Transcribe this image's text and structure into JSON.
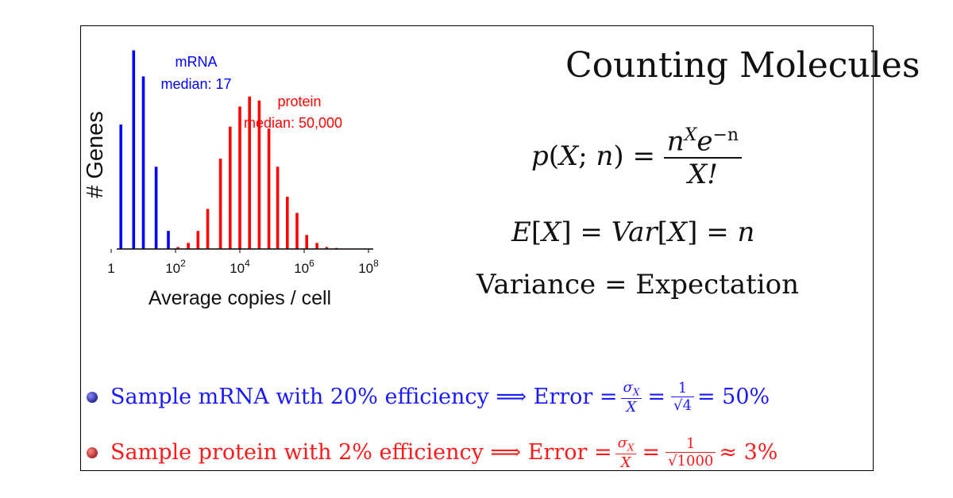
{
  "chart_data": {
    "type": "bar",
    "xlabel": "Average copies / cell",
    "ylabel": "# Genes",
    "x_scale": "log10",
    "xlim": [
      1,
      100000000
    ],
    "x_ticks": [
      {
        "value": 1,
        "base": "1",
        "exp": ""
      },
      {
        "value": 100,
        "base": "10",
        "exp": "2"
      },
      {
        "value": 10000,
        "base": "10",
        "exp": "4"
      },
      {
        "value": 1000000,
        "base": "10",
        "exp": "6"
      },
      {
        "value": 100000000,
        "base": "10",
        "exp": "8"
      }
    ],
    "ylim": [
      0,
      100
    ],
    "series": [
      {
        "name": "mRNA",
        "color": "#0000ff",
        "annotation": [
          "mRNA",
          "median: 17"
        ],
        "x": [
          2,
          5,
          10,
          25,
          60,
          120
        ],
        "values": [
          62,
          99,
          86,
          41,
          9,
          1
        ]
      },
      {
        "name": "protein",
        "color": "#ff0000",
        "annotation": [
          "protein",
          "median: 50,000"
        ],
        "x": [
          120,
          250,
          500,
          1000,
          2500,
          5000,
          10000,
          20000,
          40000,
          80000,
          150000,
          300000,
          600000,
          1200000,
          2500000,
          5000000,
          10000000
        ],
        "values": [
          1,
          3,
          9,
          20,
          45,
          61,
          71,
          76,
          74,
          60,
          41,
          26,
          18,
          7,
          3,
          1,
          0.5
        ]
      }
    ]
  },
  "slide": {
    "title": "Counting Molecules",
    "formula1": {
      "lhs_p": "p",
      "lhs_open": "(",
      "lhs_X": "X",
      "lhs_semi": "; ",
      "lhs_n": "n",
      "lhs_close": ")",
      "eq": " = ",
      "num_n": "n",
      "num_X": "X",
      "num_e": "e",
      "num_exp": "−n",
      "den": "X!"
    },
    "formula2": {
      "E": "E",
      "lb": "[",
      "X": "X",
      "rb": "]",
      "eq": " = ",
      "Var": "Var",
      "lb2": "[",
      "X2": "X",
      "rb2": "]",
      "eq2": " = ",
      "n": "n"
    },
    "formula3": "Variance = Expectation",
    "bullets": [
      {
        "color": "#1a1aff",
        "text": "Sample mRNA with 20% efficiency ⟹ Error =",
        "frac1_num": "σ",
        "frac1_num_sub": "X",
        "frac1_den": "X",
        "eq1": "=",
        "frac2_num": "1",
        "frac2_den": "√4",
        "tail": "= 50%"
      },
      {
        "color": "#ff1a1a",
        "text": "Sample protein with 2% efficiency ⟹ Error =",
        "frac1_num": "σ",
        "frac1_num_sub": "X",
        "frac1_den": "X",
        "eq1": "=",
        "frac2_num": "1",
        "frac2_den": "√1000",
        "tail": "≈ 3%"
      }
    ]
  }
}
